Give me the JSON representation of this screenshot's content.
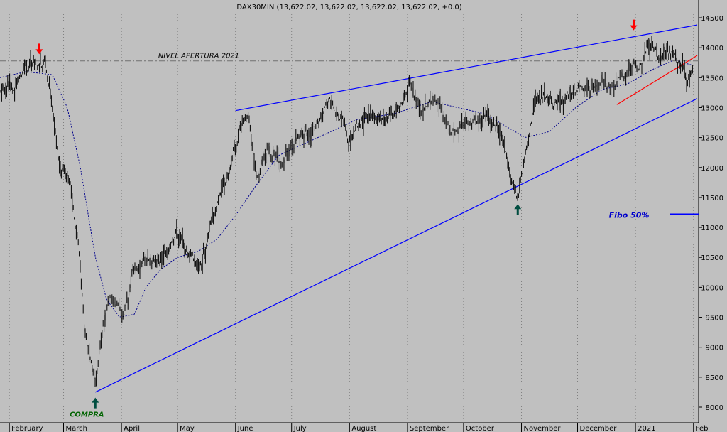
{
  "chart_data": {
    "type": "line",
    "title": "DAX30MIN (13,622.02, 13,622.02, 13,622.02, 13,622.02, +0.0)",
    "x_axis": {
      "months": [
        "February",
        "March",
        "April",
        "May",
        "June",
        "July",
        "August",
        "September",
        "October",
        "November",
        "December",
        "2021",
        "Feb"
      ]
    },
    "y_axis": {
      "ticks": [
        "14500",
        "14000",
        "13500",
        "13000",
        "12500",
        "12000",
        "11500",
        "11000",
        "10500",
        "10000",
        "9500",
        "9000",
        "8500",
        "8000"
      ],
      "range": [
        7950,
        14700
      ]
    },
    "series": [
      {
        "name": "",
        "style": "black price bars",
        "points": [
          [
            "2020-01-27",
            13300
          ],
          [
            "2020-02-04",
            13450
          ],
          [
            "2020-02-10",
            13650
          ],
          [
            "2020-02-14",
            13780
          ],
          [
            "2020-02-20",
            13790
          ],
          [
            "2020-02-24",
            13100
          ],
          [
            "2020-02-28",
            12000
          ],
          [
            "2020-03-04",
            11900
          ],
          [
            "2020-03-09",
            10600
          ],
          [
            "2020-03-12",
            9300
          ],
          [
            "2020-03-16",
            8600
          ],
          [
            "2020-03-18",
            8300
          ],
          [
            "2020-03-20",
            8900
          ],
          [
            "2020-03-24",
            9600
          ],
          [
            "2020-03-27",
            9800
          ],
          [
            "2020-04-02",
            9600
          ],
          [
            "2020-04-07",
            10300
          ],
          [
            "2020-04-15",
            10500
          ],
          [
            "2020-04-22",
            10400
          ],
          [
            "2020-04-30",
            10900
          ],
          [
            "2020-05-06",
            10600
          ],
          [
            "2020-05-14",
            10400
          ],
          [
            "2020-05-20",
            11200
          ],
          [
            "2020-05-27",
            11700
          ],
          [
            "2020-06-03",
            12600
          ],
          [
            "2020-06-08",
            12800
          ],
          [
            "2020-06-12",
            11900
          ],
          [
            "2020-06-18",
            12300
          ],
          [
            "2020-06-26",
            12100
          ],
          [
            "2020-07-06",
            12500
          ],
          [
            "2020-07-14",
            12700
          ],
          [
            "2020-07-21",
            13100
          ],
          [
            "2020-07-29",
            12800
          ],
          [
            "2020-07-31",
            12400
          ],
          [
            "2020-08-10",
            12900
          ],
          [
            "2020-08-20",
            12800
          ],
          [
            "2020-08-28",
            13000
          ],
          [
            "2020-09-02",
            13400
          ],
          [
            "2020-09-08",
            13000
          ],
          [
            "2020-09-16",
            13200
          ],
          [
            "2020-09-24",
            12600
          ],
          [
            "2020-10-02",
            12700
          ],
          [
            "2020-10-12",
            12900
          ],
          [
            "2020-10-21",
            12600
          ],
          [
            "2020-10-28",
            11700
          ],
          [
            "2020-10-30",
            11500
          ],
          [
            "2020-11-04",
            12400
          ],
          [
            "2020-11-09",
            13200
          ],
          [
            "2020-11-20",
            13100
          ],
          [
            "2020-12-01",
            13300
          ],
          [
            "2020-12-10",
            13300
          ],
          [
            "2020-12-22",
            13400
          ],
          [
            "2021-01-05",
            13800
          ],
          [
            "2021-01-08",
            14050
          ],
          [
            "2021-01-15",
            13800
          ],
          [
            "2021-01-22",
            13900
          ],
          [
            "2021-01-28",
            13450
          ],
          [
            "2021-02-01",
            13600
          ]
        ]
      },
      {
        "name": "",
        "style": "blue dotted moving average",
        "points": [
          [
            "2020-01-27",
            13500
          ],
          [
            "2020-02-10",
            13600
          ],
          [
            "2020-02-24",
            13550
          ],
          [
            "2020-03-03",
            13000
          ],
          [
            "2020-03-10",
            12000
          ],
          [
            "2020-03-18",
            10500
          ],
          [
            "2020-03-24",
            9800
          ],
          [
            "2020-03-31",
            9500
          ],
          [
            "2020-04-08",
            9550
          ],
          [
            "2020-04-14",
            10000
          ],
          [
            "2020-04-22",
            10300
          ],
          [
            "2020-05-01",
            10500
          ],
          [
            "2020-05-12",
            10600
          ],
          [
            "2020-05-22",
            10800
          ],
          [
            "2020-06-01",
            11200
          ],
          [
            "2020-06-12",
            11700
          ],
          [
            "2020-06-24",
            12200
          ],
          [
            "2020-07-08",
            12400
          ],
          [
            "2020-07-22",
            12600
          ],
          [
            "2020-08-05",
            12800
          ],
          [
            "2020-08-25",
            12900
          ],
          [
            "2020-09-14",
            13100
          ],
          [
            "2020-09-28",
            13000
          ],
          [
            "2020-10-12",
            12900
          ],
          [
            "2020-10-23",
            12700
          ],
          [
            "2020-11-03",
            12500
          ],
          [
            "2020-11-16",
            12600
          ],
          [
            "2020-11-30",
            13000
          ],
          [
            "2020-12-14",
            13300
          ],
          [
            "2020-12-28",
            13400
          ],
          [
            "2021-01-11",
            13650
          ],
          [
            "2021-01-22",
            13800
          ],
          [
            "2021-02-01",
            13700
          ]
        ]
      }
    ],
    "lines": [
      {
        "style": "blue",
        "from": [
          "2020-03-18",
          8250
        ],
        "to": [
          "2021-02-03",
          13150
        ]
      },
      {
        "style": "blue",
        "from": [
          "2020-06-01",
          12950
        ],
        "to": [
          "2021-02-03",
          14380
        ]
      },
      {
        "style": "red",
        "from": [
          "2020-12-22",
          13050
        ],
        "to": [
          "2021-02-03",
          13870
        ]
      },
      {
        "style": "gray dash-dot",
        "at": 13780,
        "label": "NIVEL APERTURA 2021"
      },
      {
        "style": "blue",
        "at": 11220,
        "label": "Fibo 50%"
      }
    ],
    "markers": [
      {
        "type": "down-arrow",
        "color": "red",
        "at": [
          "2020-02-17",
          13950
        ]
      },
      {
        "type": "down-arrow",
        "color": "red",
        "at": [
          "2020-12-31",
          14350
        ]
      },
      {
        "type": "up-arrow",
        "color": "dark-green",
        "at": [
          "2020-03-18",
          8100
        ],
        "label": "COMPRA"
      },
      {
        "type": "up-arrow",
        "color": "dark-green",
        "at": [
          "2020-10-30",
          11330
        ]
      }
    ],
    "grid": "vertical dotted at month boundaries",
    "colors": {
      "background": "#c0c0c0",
      "price": "#000000",
      "trend": "#0000ff",
      "red": "#ff0000",
      "green": "#004d40"
    }
  }
}
